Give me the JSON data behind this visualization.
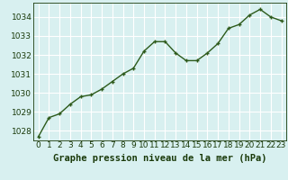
{
  "x": [
    0,
    1,
    2,
    3,
    4,
    5,
    6,
    7,
    8,
    9,
    10,
    11,
    12,
    13,
    14,
    15,
    16,
    17,
    18,
    19,
    20,
    21,
    22,
    23
  ],
  "y": [
    1027.7,
    1028.7,
    1028.9,
    1029.4,
    1029.8,
    1029.9,
    1030.2,
    1030.6,
    1031.0,
    1031.3,
    1032.2,
    1032.7,
    1032.7,
    1032.1,
    1031.7,
    1031.7,
    1032.1,
    1032.6,
    1033.4,
    1033.6,
    1034.1,
    1034.4,
    1034.0,
    1033.8
  ],
  "line_color": "#2d5a1b",
  "marker_color": "#2d5a1b",
  "bg_color": "#d8f0f0",
  "grid_color": "#ffffff",
  "xlabel": "Graphe pression niveau de la mer (hPa)",
  "xlabel_color": "#1a3a0a",
  "tick_color": "#1a3a0a",
  "ylim": [
    1027.5,
    1034.75
  ],
  "xlim": [
    -0.5,
    23.5
  ],
  "yticks": [
    1028,
    1029,
    1030,
    1031,
    1032,
    1033,
    1034
  ],
  "xticks": [
    0,
    1,
    2,
    3,
    4,
    5,
    6,
    7,
    8,
    9,
    10,
    11,
    12,
    13,
    14,
    15,
    16,
    17,
    18,
    19,
    20,
    21,
    22,
    23
  ],
  "xlabel_fontsize": 7.5,
  "tick_fontsize": 6.5,
  "linewidth": 1.0,
  "markersize": 3.0,
  "marker": "+"
}
